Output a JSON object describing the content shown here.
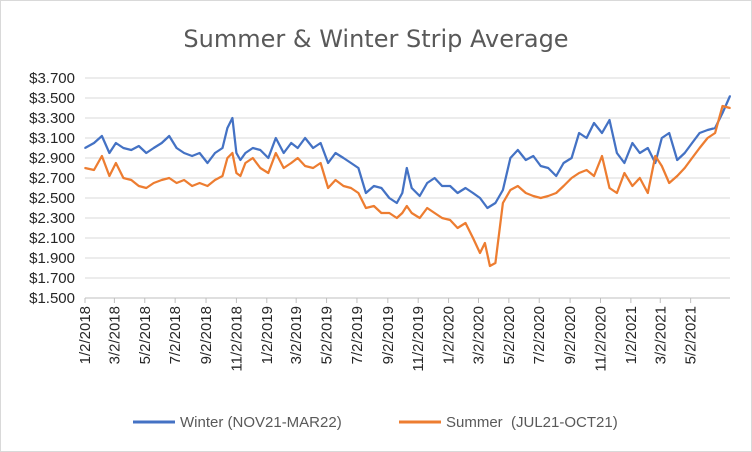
{
  "chart_data": {
    "type": "line",
    "title": "Summer & Winter Strip Average",
    "xlabel": "",
    "ylabel": "",
    "ylim": [
      1.5,
      3.7
    ],
    "yticks": [
      "$3.700",
      "$3.500",
      "$3.300",
      "$3.100",
      "$2.900",
      "$2.700",
      "$2.500",
      "$2.300",
      "$2.100",
      "$1.900",
      "$1.700",
      "$1.500"
    ],
    "xticks": [
      "1/2/2018",
      "3/2/2018",
      "5/2/2018",
      "7/2/2018",
      "9/2/2018",
      "11/2/2018",
      "1/2/2019",
      "3/2/2019",
      "5/2/2019",
      "7/2/2019",
      "9/2/2019",
      "11/2/2019",
      "1/2/2020",
      "3/2/2020",
      "5/2/2020",
      "7/2/2020",
      "9/2/2020",
      "11/2/2020",
      "1/2/2021",
      "3/2/2021",
      "5/2/2021"
    ],
    "gridlines": true,
    "legend_position": "bottom",
    "x_start": "2018-01-02",
    "x_end": "2021-07-20",
    "series": [
      {
        "name": "Winter (NOV21-MAR22)",
        "color": "#4472c4",
        "x": [
          "2018-01-02",
          "2018-01-20",
          "2018-02-05",
          "2018-02-20",
          "2018-03-05",
          "2018-03-20",
          "2018-04-05",
          "2018-04-20",
          "2018-05-05",
          "2018-05-20",
          "2018-06-05",
          "2018-06-20",
          "2018-07-05",
          "2018-07-20",
          "2018-08-05",
          "2018-08-20",
          "2018-09-05",
          "2018-09-20",
          "2018-10-05",
          "2018-10-15",
          "2018-10-25",
          "2018-11-02",
          "2018-11-10",
          "2018-11-20",
          "2018-12-05",
          "2018-12-20",
          "2019-01-05",
          "2019-01-20",
          "2019-02-05",
          "2019-02-20",
          "2019-03-05",
          "2019-03-20",
          "2019-04-05",
          "2019-04-20",
          "2019-05-05",
          "2019-05-20",
          "2019-06-05",
          "2019-06-20",
          "2019-07-05",
          "2019-07-20",
          "2019-08-05",
          "2019-08-20",
          "2019-09-05",
          "2019-09-20",
          "2019-10-01",
          "2019-10-10",
          "2019-10-20",
          "2019-11-05",
          "2019-11-20",
          "2019-12-05",
          "2019-12-20",
          "2020-01-05",
          "2020-01-20",
          "2020-02-05",
          "2020-02-20",
          "2020-03-05",
          "2020-03-20",
          "2020-04-05",
          "2020-04-20",
          "2020-05-05",
          "2020-05-20",
          "2020-06-05",
          "2020-06-20",
          "2020-07-05",
          "2020-07-20",
          "2020-08-05",
          "2020-08-20",
          "2020-09-05",
          "2020-09-20",
          "2020-10-05",
          "2020-10-20",
          "2020-11-05",
          "2020-11-20",
          "2020-12-05",
          "2020-12-20",
          "2021-01-05",
          "2021-01-20",
          "2021-02-05",
          "2021-02-20",
          "2021-03-05",
          "2021-03-20",
          "2021-04-05",
          "2021-04-20",
          "2021-05-05",
          "2021-05-20",
          "2021-06-05",
          "2021-06-20",
          "2021-07-05",
          "2021-07-20"
        ],
        "y": [
          3.0,
          3.05,
          3.12,
          2.95,
          3.05,
          3.0,
          2.98,
          3.02,
          2.95,
          3.0,
          3.05,
          3.12,
          3.0,
          2.95,
          2.92,
          2.95,
          2.85,
          2.95,
          3.0,
          3.2,
          3.3,
          2.95,
          2.88,
          2.95,
          3.0,
          2.98,
          2.9,
          3.1,
          2.95,
          3.05,
          3.0,
          3.1,
          3.0,
          3.05,
          2.85,
          2.95,
          2.9,
          2.85,
          2.8,
          2.55,
          2.62,
          2.6,
          2.5,
          2.45,
          2.55,
          2.8,
          2.6,
          2.52,
          2.65,
          2.7,
          2.62,
          2.62,
          2.55,
          2.6,
          2.55,
          2.5,
          2.4,
          2.45,
          2.58,
          2.9,
          2.98,
          2.88,
          2.92,
          2.82,
          2.8,
          2.72,
          2.85,
          2.9,
          3.15,
          3.1,
          3.25,
          3.15,
          3.28,
          2.95,
          2.85,
          3.05,
          2.95,
          3.0,
          2.85,
          3.1,
          3.15,
          2.88,
          2.95,
          3.05,
          3.15,
          3.18,
          3.2,
          3.35,
          3.52
        ]
      },
      {
        "name": "Summer  (JUL21-OCT21)",
        "color": "#ed7d31",
        "x": [
          "2018-01-02",
          "2018-01-20",
          "2018-02-05",
          "2018-02-20",
          "2018-03-05",
          "2018-03-20",
          "2018-04-05",
          "2018-04-20",
          "2018-05-05",
          "2018-05-20",
          "2018-06-05",
          "2018-06-20",
          "2018-07-05",
          "2018-07-20",
          "2018-08-05",
          "2018-08-20",
          "2018-09-05",
          "2018-09-20",
          "2018-10-05",
          "2018-10-15",
          "2018-10-25",
          "2018-11-02",
          "2018-11-10",
          "2018-11-20",
          "2018-12-05",
          "2018-12-20",
          "2019-01-05",
          "2019-01-20",
          "2019-02-05",
          "2019-02-20",
          "2019-03-05",
          "2019-03-20",
          "2019-04-05",
          "2019-04-20",
          "2019-05-05",
          "2019-05-20",
          "2019-06-05",
          "2019-06-20",
          "2019-07-05",
          "2019-07-20",
          "2019-08-05",
          "2019-08-20",
          "2019-09-05",
          "2019-09-20",
          "2019-10-01",
          "2019-10-10",
          "2019-10-20",
          "2019-11-05",
          "2019-11-20",
          "2019-12-05",
          "2019-12-20",
          "2020-01-05",
          "2020-01-20",
          "2020-02-05",
          "2020-02-20",
          "2020-03-05",
          "2020-03-15",
          "2020-03-25",
          "2020-04-05",
          "2020-04-20",
          "2020-05-05",
          "2020-05-20",
          "2020-06-05",
          "2020-06-20",
          "2020-07-05",
          "2020-07-20",
          "2020-08-05",
          "2020-08-20",
          "2020-09-05",
          "2020-09-20",
          "2020-10-05",
          "2020-10-20",
          "2020-11-05",
          "2020-11-20",
          "2020-12-05",
          "2020-12-20",
          "2021-01-05",
          "2021-01-20",
          "2021-02-05",
          "2021-02-20",
          "2021-03-05",
          "2021-03-20",
          "2021-04-05",
          "2021-04-20",
          "2021-05-05",
          "2021-05-20",
          "2021-06-05",
          "2021-06-20",
          "2021-07-05",
          "2021-07-20"
        ],
        "y": [
          2.8,
          2.78,
          2.92,
          2.72,
          2.85,
          2.7,
          2.68,
          2.62,
          2.6,
          2.65,
          2.68,
          2.7,
          2.65,
          2.68,
          2.62,
          2.65,
          2.62,
          2.68,
          2.72,
          2.9,
          2.95,
          2.75,
          2.72,
          2.85,
          2.9,
          2.8,
          2.75,
          2.95,
          2.8,
          2.85,
          2.9,
          2.82,
          2.8,
          2.85,
          2.6,
          2.68,
          2.62,
          2.6,
          2.55,
          2.4,
          2.42,
          2.35,
          2.35,
          2.3,
          2.35,
          2.42,
          2.35,
          2.3,
          2.4,
          2.35,
          2.3,
          2.28,
          2.2,
          2.25,
          2.1,
          1.95,
          2.05,
          1.82,
          1.85,
          2.45,
          2.58,
          2.62,
          2.55,
          2.52,
          2.5,
          2.52,
          2.55,
          2.62,
          2.7,
          2.75,
          2.78,
          2.72,
          2.92,
          2.6,
          2.55,
          2.75,
          2.62,
          2.7,
          2.55,
          2.92,
          2.82,
          2.65,
          2.72,
          2.8,
          2.9,
          3.0,
          3.1,
          3.15,
          3.42,
          3.4
        ]
      }
    ]
  }
}
